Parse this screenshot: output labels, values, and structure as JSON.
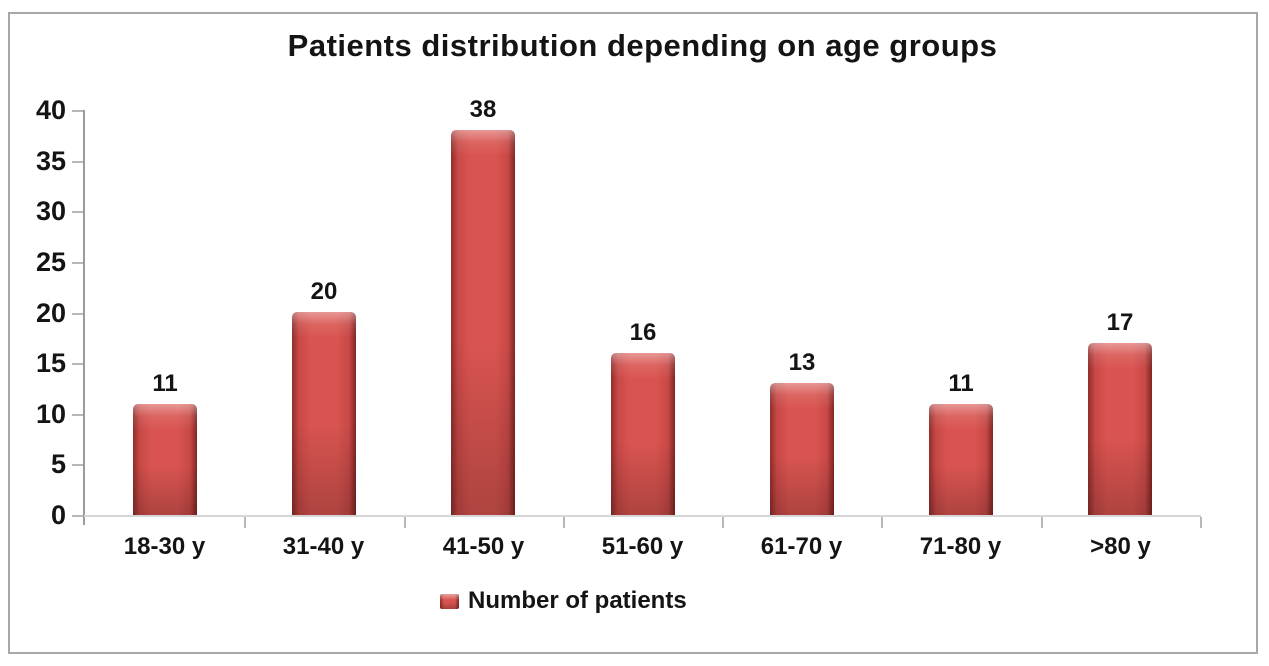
{
  "figure": {
    "background": "#ffffff",
    "frame_border_color": "#a8a8a8"
  },
  "chart_data": {
    "type": "bar",
    "title": "Patients distribution depending on age groups",
    "categories": [
      "18-30 y",
      "31-40 y",
      "41-50 y",
      "51-60 y",
      "61-70 y",
      "71-80 y",
      ">80 y"
    ],
    "series": [
      {
        "name": "Number of patients",
        "values": [
          11,
          20,
          38,
          16,
          13,
          11,
          17
        ]
      }
    ],
    "data_labels_shown": true,
    "xlabel": "",
    "ylabel": "",
    "ylim": [
      0,
      40
    ],
    "y_ticks": [
      0,
      5,
      10,
      15,
      20,
      25,
      30,
      35,
      40
    ],
    "grid": false,
    "legend_position": "bottom",
    "colors": {
      "bar_main": "#d95450",
      "bar_edge_dark": "#8f2d2b",
      "text": "#141414",
      "y_axis_line": "#9b9b9b",
      "x_axis_line": "#d6d6d6",
      "tick": "#b8b8b8"
    }
  }
}
